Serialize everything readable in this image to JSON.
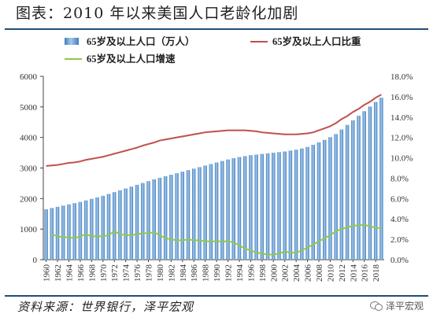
{
  "header": {
    "title": "图表：2010 年以来美国人口老龄化加剧"
  },
  "footer": {
    "source": "资料来源：世界银行，泽平宏观",
    "brand": "泽平宏观"
  },
  "chart_data": {
    "type": "bar",
    "categories": [
      "1960",
      "1961",
      "1962",
      "1963",
      "1964",
      "1965",
      "1966",
      "1967",
      "1968",
      "1969",
      "1970",
      "1971",
      "1972",
      "1973",
      "1974",
      "1975",
      "1976",
      "1977",
      "1978",
      "1979",
      "1980",
      "1981",
      "1982",
      "1983",
      "1984",
      "1985",
      "1986",
      "1987",
      "1988",
      "1989",
      "1990",
      "1991",
      "1992",
      "1993",
      "1994",
      "1995",
      "1996",
      "1997",
      "1998",
      "1999",
      "2000",
      "2001",
      "2002",
      "2003",
      "2004",
      "2005",
      "2006",
      "2007",
      "2008",
      "2009",
      "2010",
      "2011",
      "2012",
      "2013",
      "2014",
      "2015",
      "2016",
      "2017",
      "2018",
      "2019"
    ],
    "x_tick_labels": [
      "1960",
      "1962",
      "1964",
      "1966",
      "1968",
      "1970",
      "1972",
      "1974",
      "1976",
      "1978",
      "1980",
      "1982",
      "1984",
      "1986",
      "1988",
      "1990",
      "1992",
      "1994",
      "1996",
      "1998",
      "2000",
      "2002",
      "2004",
      "2006",
      "2008",
      "2010",
      "2012",
      "2014",
      "2016",
      "2018"
    ],
    "y_left": {
      "ticks": [
        0,
        1000,
        2000,
        3000,
        4000,
        5000,
        6000
      ],
      "ylim": [
        0,
        6000
      ]
    },
    "y_right": {
      "ticks": [
        "0.0%",
        "2.0%",
        "4.0%",
        "6.0%",
        "8.0%",
        "10.0%",
        "12.0%",
        "14.0%",
        "16.0%",
        "18.0%"
      ],
      "ylim": [
        0,
        18
      ]
    },
    "legend": {
      "placement": "top"
    },
    "colors": {
      "bars": "#3e7fc1",
      "bars_light": "#a9c8e8",
      "ratio_line": "#c0504d",
      "growth_line": "#92c84a"
    },
    "series": [
      {
        "name": "65岁及以上人口（万人）",
        "type": "bar",
        "axis": "left",
        "values": [
          1650,
          1690,
          1730,
          1770,
          1810,
          1850,
          1890,
          1940,
          1990,
          2040,
          2090,
          2150,
          2210,
          2270,
          2330,
          2390,
          2450,
          2510,
          2570,
          2630,
          2680,
          2730,
          2780,
          2830,
          2880,
          2930,
          2980,
          3030,
          3080,
          3130,
          3180,
          3230,
          3280,
          3320,
          3360,
          3390,
          3420,
          3440,
          3460,
          3480,
          3500,
          3520,
          3540,
          3570,
          3600,
          3640,
          3690,
          3760,
          3840,
          3920,
          4010,
          4110,
          4260,
          4410,
          4560,
          4710,
          4860,
          5010,
          5160,
          5300
        ]
      },
      {
        "name": "65岁及以上人口比重",
        "type": "line",
        "axis": "right",
        "values": [
          9.2,
          9.25,
          9.3,
          9.4,
          9.5,
          9.55,
          9.65,
          9.8,
          9.9,
          10.0,
          10.1,
          10.25,
          10.4,
          10.55,
          10.7,
          10.85,
          11.0,
          11.2,
          11.35,
          11.5,
          11.7,
          11.8,
          11.9,
          12.0,
          12.1,
          12.2,
          12.3,
          12.4,
          12.5,
          12.55,
          12.6,
          12.65,
          12.7,
          12.7,
          12.7,
          12.7,
          12.65,
          12.6,
          12.5,
          12.45,
          12.4,
          12.35,
          12.3,
          12.3,
          12.3,
          12.35,
          12.4,
          12.5,
          12.7,
          12.9,
          13.1,
          13.4,
          13.8,
          14.1,
          14.5,
          14.8,
          15.2,
          15.5,
          15.9,
          16.2
        ]
      },
      {
        "name": "65岁及以上人口增速",
        "type": "line",
        "axis": "right",
        "values": [
          null,
          2.5,
          2.3,
          2.2,
          2.2,
          2.1,
          2.3,
          2.5,
          2.3,
          2.3,
          2.3,
          2.4,
          2.8,
          2.5,
          2.4,
          2.4,
          2.5,
          2.6,
          2.6,
          2.7,
          2.4,
          2.1,
          2.0,
          1.9,
          1.9,
          2.0,
          1.9,
          1.9,
          1.8,
          1.8,
          1.8,
          1.8,
          1.8,
          1.7,
          1.4,
          1.1,
          0.9,
          0.7,
          0.6,
          0.5,
          0.5,
          0.6,
          0.8,
          0.7,
          0.7,
          0.9,
          1.2,
          1.5,
          1.8,
          2.1,
          2.4,
          2.8,
          3.0,
          3.2,
          3.3,
          3.4,
          3.4,
          3.3,
          3.1,
          3.1
        ]
      }
    ]
  }
}
